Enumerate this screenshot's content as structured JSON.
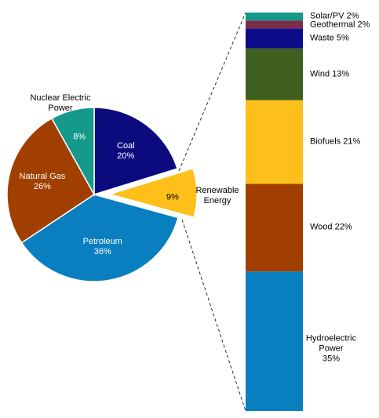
{
  "chart_data": [
    {
      "type": "pie",
      "categories": [
        "Coal",
        "Renewable Energy",
        "Petroleum",
        "Natural Gas",
        "Nuclear Electric Power"
      ],
      "values": [
        20,
        9,
        36,
        26,
        8
      ],
      "value_labels": [
        "20%",
        "9%",
        "36%",
        "26%",
        "8%"
      ],
      "colors": [
        "#0c0b7e",
        "#fdc01a",
        "#0a7fc0",
        "#a13f00",
        "#14998a"
      ]
    },
    {
      "type": "bar",
      "categories": [
        "Hydroelectric Power",
        "Wood",
        "Biofuels",
        "Wind",
        "Waste",
        "Geothermal",
        "Solar/PV"
      ],
      "values": [
        35,
        22,
        21,
        13,
        5,
        2,
        2
      ],
      "value_labels": [
        "35%",
        "22%",
        "21%",
        "13%",
        "5%",
        "2%",
        "2%"
      ],
      "colors": [
        "#0a7fc0",
        "#a13f00",
        "#fdc01a",
        "#3f5f1f",
        "#0c0b8a",
        "#7b2d4a",
        "#14998a"
      ]
    }
  ]
}
